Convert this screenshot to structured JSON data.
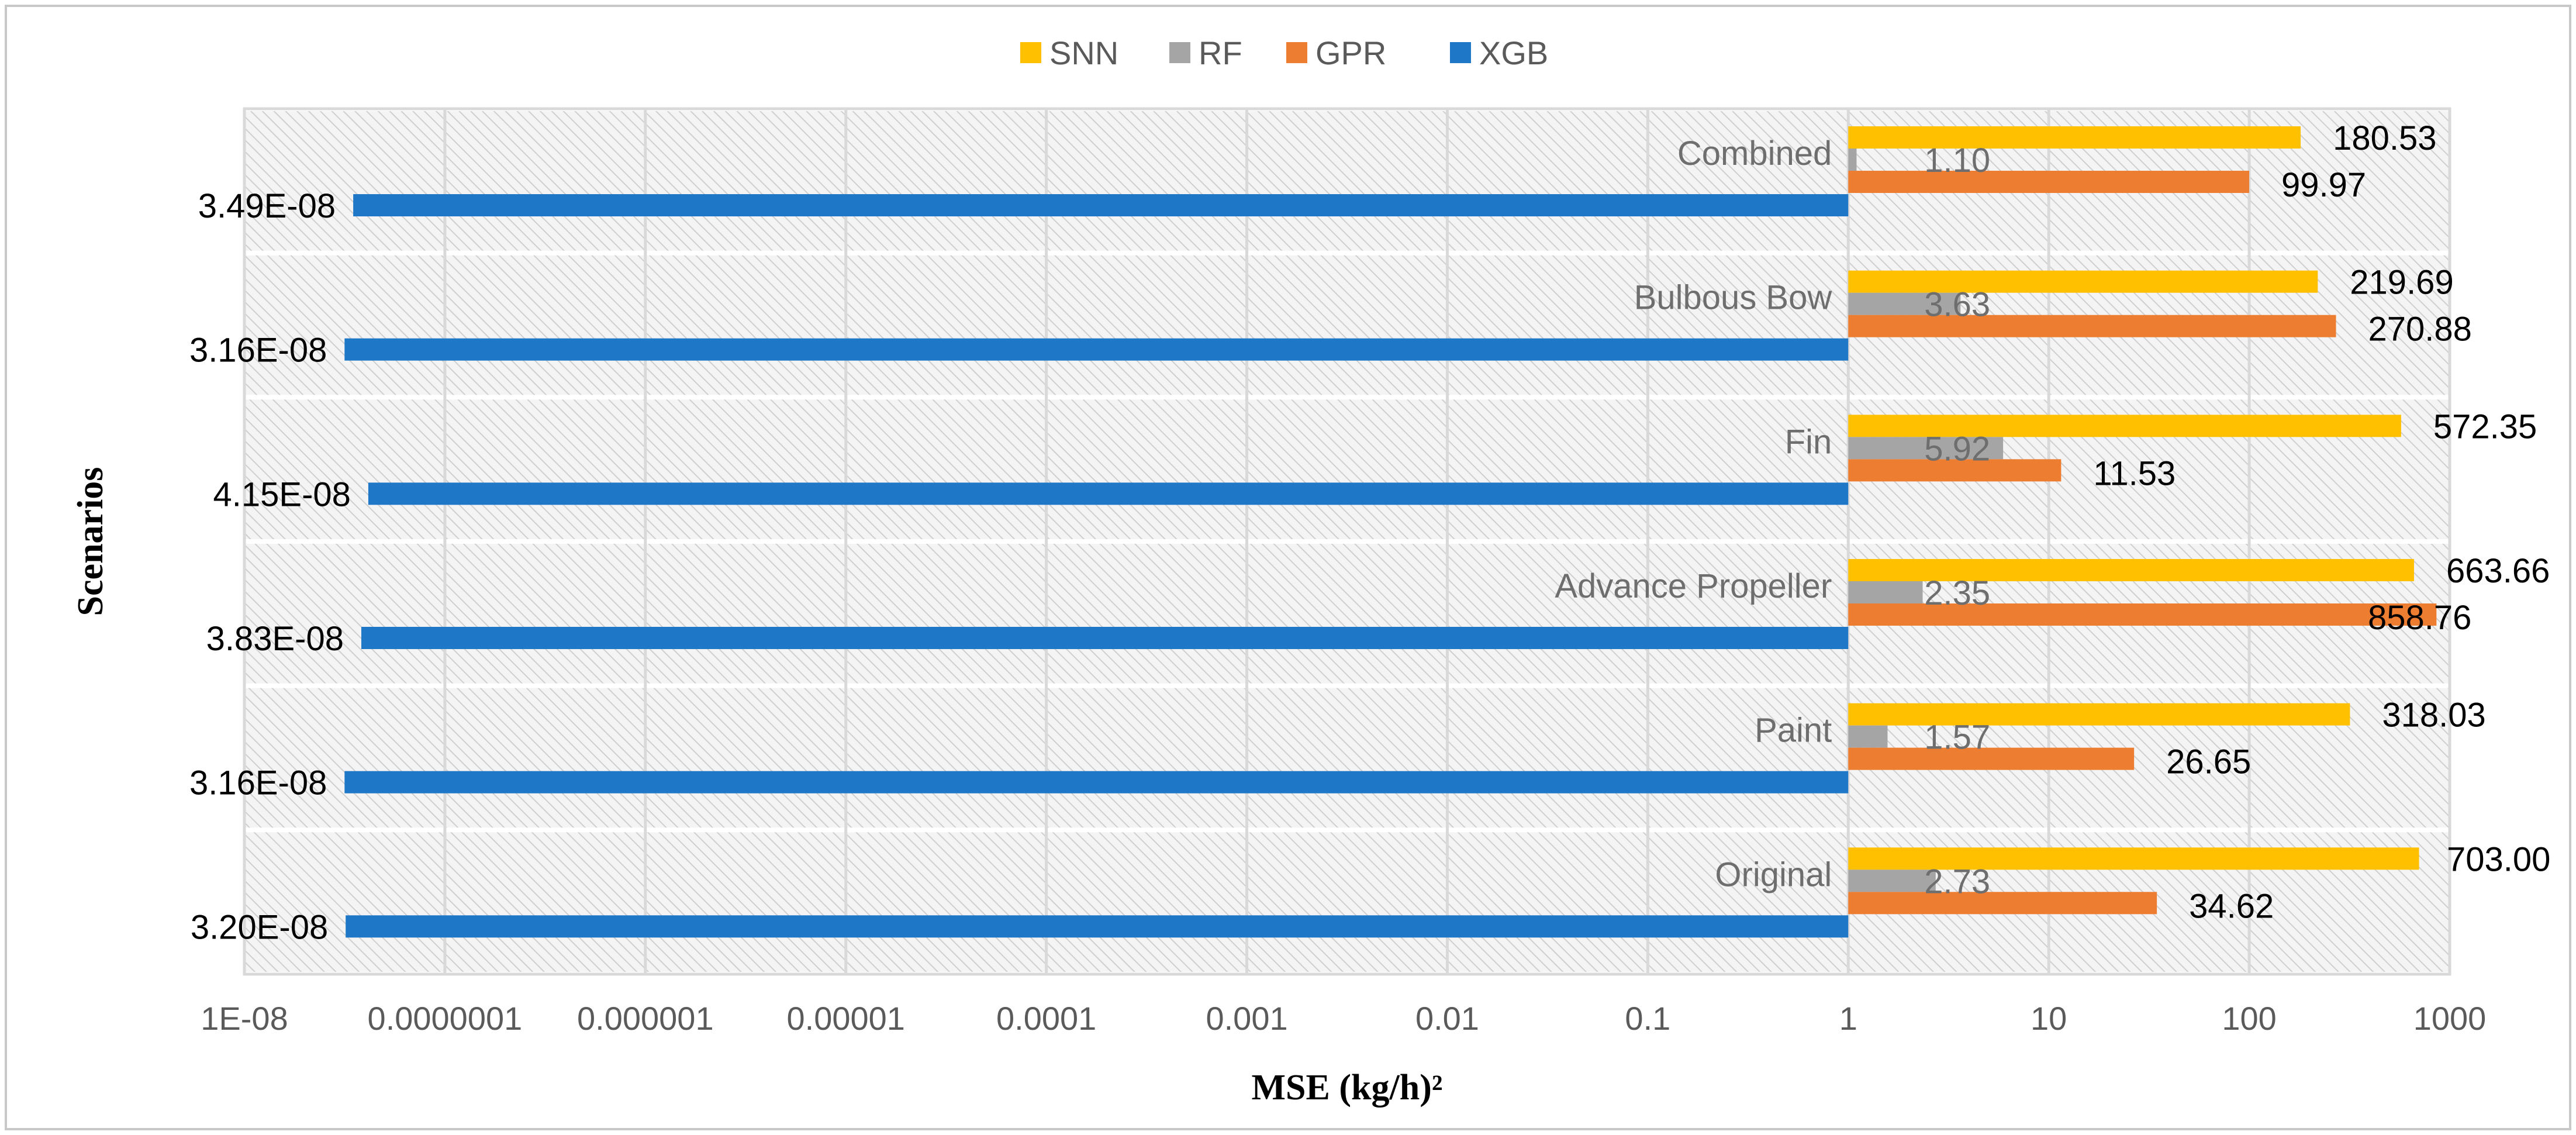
{
  "chart_data": {
    "type": "bar",
    "orientation": "horizontal",
    "x_scale": "log",
    "xlim": [
      1e-08,
      1000
    ],
    "xlabel": "MSE (kg/h)²",
    "ylabel": "Scenarios",
    "legend_position": "top",
    "x_tick_labels": [
      "1E-08",
      "0.0000001",
      "0.000001",
      "0.00001",
      "0.0001",
      "0.001",
      "0.01",
      "0.1",
      "1",
      "10",
      "100",
      "1000"
    ],
    "categories": [
      "Combined",
      "Bulbous Bow",
      "Fin",
      "Advance Propeller",
      "Paint",
      "Original"
    ],
    "series": [
      {
        "name": "SNN",
        "color": "#FFC000",
        "values": [
          180.53,
          219.69,
          572.35,
          663.66,
          318.03,
          703.0
        ],
        "labels": [
          "180.53",
          "219.69",
          "572.35",
          "663.66",
          "318.03",
          "703.00"
        ]
      },
      {
        "name": "RF",
        "color": "#A5A5A5",
        "values": [
          1.1,
          3.63,
          5.92,
          2.35,
          1.57,
          2.73
        ],
        "labels": [
          "1.10",
          "3.63",
          "5.92",
          "2.35",
          "1.57",
          "2.73"
        ]
      },
      {
        "name": "GPR",
        "color": "#ED7D31",
        "values": [
          99.97,
          270.88,
          11.53,
          858.76,
          26.65,
          34.62
        ],
        "labels": [
          "99.97",
          "270.88",
          "11.53",
          "858.76",
          "26.65",
          "34.62"
        ]
      },
      {
        "name": "XGB",
        "color": "#1F77C8",
        "values": [
          3.49e-08,
          3.16e-08,
          4.15e-08,
          3.83e-08,
          3.16e-08,
          3.2e-08
        ],
        "labels": [
          "3.49E-08",
          "3.16E-08",
          "4.15E-08",
          "3.83E-08",
          "3.16E-08",
          "3.20E-08"
        ]
      }
    ]
  }
}
